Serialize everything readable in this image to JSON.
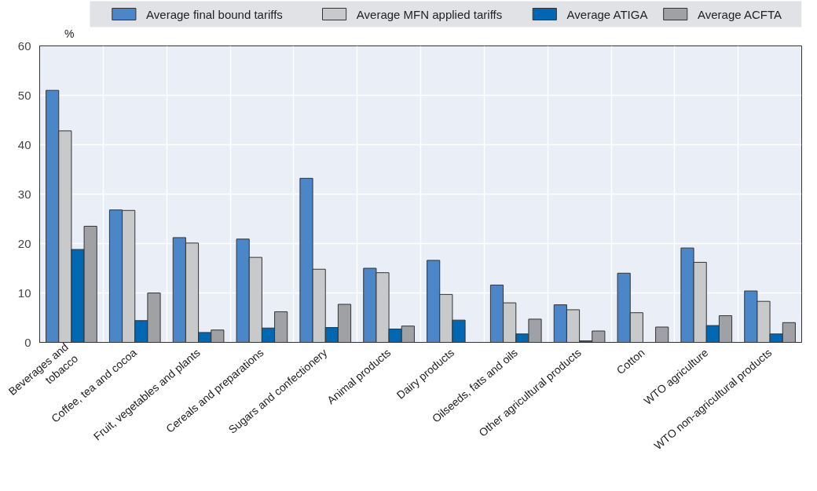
{
  "chart_data": {
    "type": "bar",
    "ylabel": "%",
    "categories": [
      "Beverages and\ntobacco",
      "Coffee, tea and cocoa",
      "Fruit, vegetables and plants",
      "Cereals and preparations",
      "Sugars and confectionery",
      "Animal products",
      "Dairy products",
      "Oilseeds, fats and oils",
      "Other agricultural products",
      "Cotton",
      "WTO agriculture",
      "WTO non-agricultural products"
    ],
    "series": [
      {
        "name": "Average final bound tariffs",
        "color": "#4a86c8",
        "values": [
          51.0,
          26.8,
          21.2,
          20.9,
          33.2,
          15.0,
          16.6,
          11.6,
          7.6,
          14.0,
          19.1,
          10.4
        ]
      },
      {
        "name": "Average MFN applied tariffs",
        "color": "#c8c9cb",
        "values": [
          42.8,
          26.7,
          20.1,
          17.2,
          14.8,
          14.1,
          9.7,
          8.0,
          6.6,
          6.0,
          16.2,
          8.3
        ]
      },
      {
        "name": "Average ATIGA",
        "color": "#0068b3",
        "values": [
          18.8,
          4.4,
          2.0,
          2.9,
          3.0,
          2.7,
          4.5,
          1.7,
          0.3,
          null,
          3.4,
          1.7
        ]
      },
      {
        "name": "Average ACFTA",
        "color": "#a0a1a5",
        "values": [
          23.5,
          10.0,
          2.5,
          6.2,
          7.7,
          3.3,
          null,
          4.7,
          2.3,
          3.1,
          5.4,
          4.0
        ]
      }
    ],
    "ylim": [
      0,
      60
    ],
    "yticks": [
      0,
      10,
      20,
      30,
      40,
      50,
      60
    ],
    "grid": true,
    "legend": "top"
  }
}
